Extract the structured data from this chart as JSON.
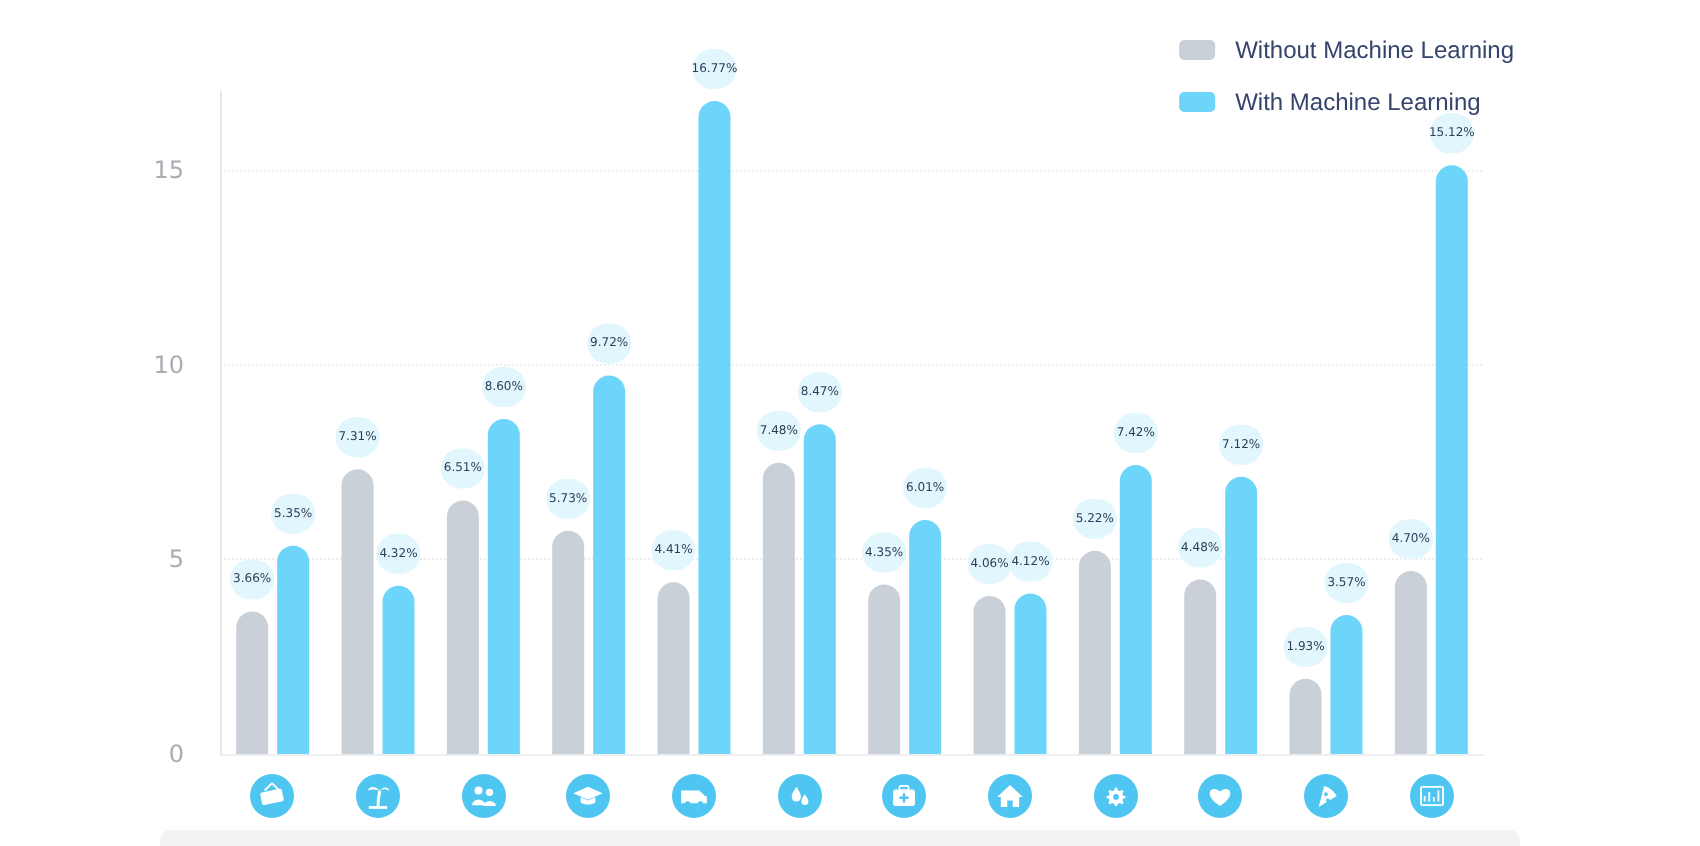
{
  "chart_data": {
    "type": "bar",
    "categories": [
      null,
      null,
      null,
      null,
      null,
      null,
      null,
      null,
      null,
      null,
      null,
      null
    ],
    "series": [
      {
        "name": "Without Machine Learning",
        "color": "#c9d0d8",
        "values": [
          3.66,
          7.31,
          6.51,
          5.73,
          4.41,
          7.48,
          4.35,
          4.06,
          5.22,
          4.48,
          1.93,
          4.7
        ],
        "value_labels": [
          "3.66%",
          "7.31%",
          "6.51%",
          "5.73%",
          "4.41%",
          "7.48%",
          "4.35%",
          "4.06%",
          "5.22%",
          "4.48%",
          "1.93%",
          "4.70%"
        ]
      },
      {
        "name": "With Machine Learning",
        "color": "#6dd5fa",
        "values": [
          5.35,
          4.32,
          8.6,
          9.72,
          16.77,
          8.47,
          6.01,
          4.12,
          7.42,
          7.12,
          3.57,
          15.12
        ],
        "value_labels": [
          "5.35%",
          "4.32%",
          "8.60%",
          "9.72%",
          "16.77%",
          "8.47%",
          "6.01%",
          "4.12%",
          "7.42%",
          "7.12%",
          "3.57%",
          "15.12%"
        ]
      }
    ],
    "ylim": [
      0,
      17
    ],
    "yticks": [
      0,
      5,
      10,
      15
    ],
    "grid": "y",
    "legend": "top right"
  }
}
